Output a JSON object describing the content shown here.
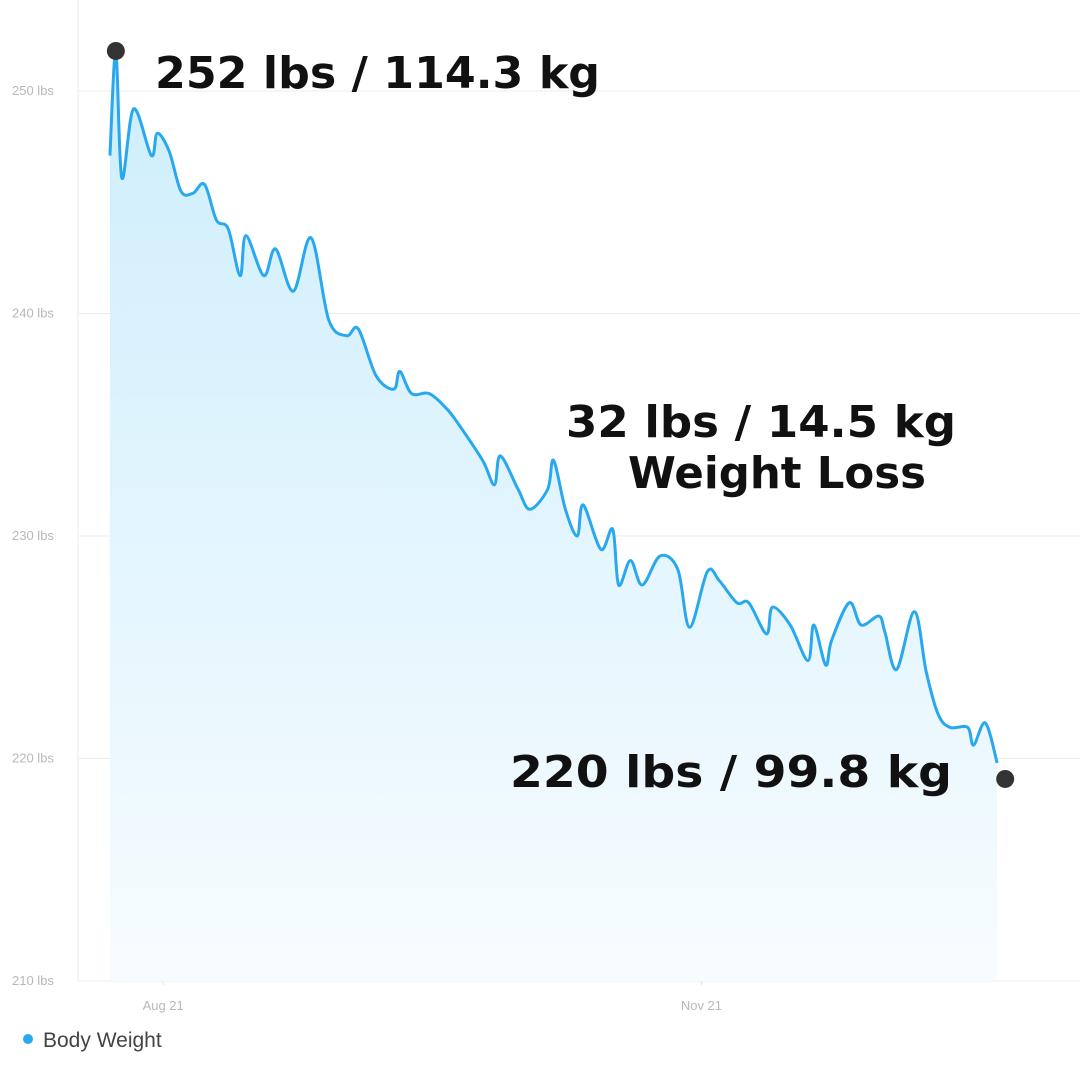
{
  "chart_data": {
    "type": "area",
    "x": [
      0,
      1,
      2,
      4,
      7,
      8,
      10,
      12,
      14,
      16,
      18,
      20,
      22,
      23,
      26,
      28,
      31,
      34,
      37,
      40,
      42,
      45,
      48,
      49,
      51,
      54,
      57,
      59,
      63,
      65,
      66,
      69,
      71,
      74,
      75,
      77,
      79,
      80,
      83,
      85,
      86,
      88,
      90,
      93,
      96,
      98,
      101,
      103,
      106,
      108,
      111,
      112,
      115,
      118,
      119,
      121,
      122,
      125,
      127,
      130,
      131,
      133,
      136,
      138,
      140,
      142,
      145,
      146,
      148,
      150
    ],
    "series": [
      {
        "name": "Body Weight",
        "color": "#29a8f0",
        "values": [
          247.1,
          251.8,
          246.1,
          249.2,
          247.1,
          248.1,
          247.3,
          245.5,
          245.4,
          245.8,
          244.2,
          243.8,
          241.7,
          243.5,
          241.7,
          242.9,
          241.0,
          243.4,
          239.7,
          239.0,
          239.3,
          237.2,
          236.6,
          237.4,
          236.4,
          236.4,
          235.7,
          235.0,
          233.4,
          232.3,
          233.6,
          232.1,
          231.2,
          232.1,
          233.4,
          231.2,
          230.0,
          231.4,
          229.4,
          230.3,
          227.8,
          228.9,
          227.8,
          229.1,
          228.5,
          225.9,
          228.4,
          228.0,
          227.0,
          227.0,
          225.6,
          226.8,
          226.0,
          224.4,
          226.0,
          224.2,
          225.3,
          227.0,
          226.0,
          226.4,
          225.7,
          224.0,
          226.6,
          223.9,
          222.0,
          221.4,
          221.4,
          220.6,
          221.6,
          219.8
        ]
      }
    ],
    "xlim": [
      -5.4,
      164
    ],
    "xticks": [
      {
        "value": 9,
        "label": "Aug 21"
      },
      {
        "value": 100,
        "label": "Nov 21"
      }
    ],
    "ylim": [
      210,
      254
    ],
    "yticks": [
      {
        "value": 210,
        "label": "210 lbs"
      },
      {
        "value": 220,
        "label": "220 lbs"
      },
      {
        "value": 230,
        "label": "230 lbs"
      },
      {
        "value": 240,
        "label": "240 lbs"
      },
      {
        "value": 250,
        "label": "250 lbs"
      }
    ],
    "grid": true,
    "annotations": {
      "start": "252 lbs / 114.3 kg",
      "loss": "32 lbs / 14.5 kg",
      "loss_caption": "Weight Loss",
      "end": "220 lbs / 99.8 kg"
    }
  }
}
